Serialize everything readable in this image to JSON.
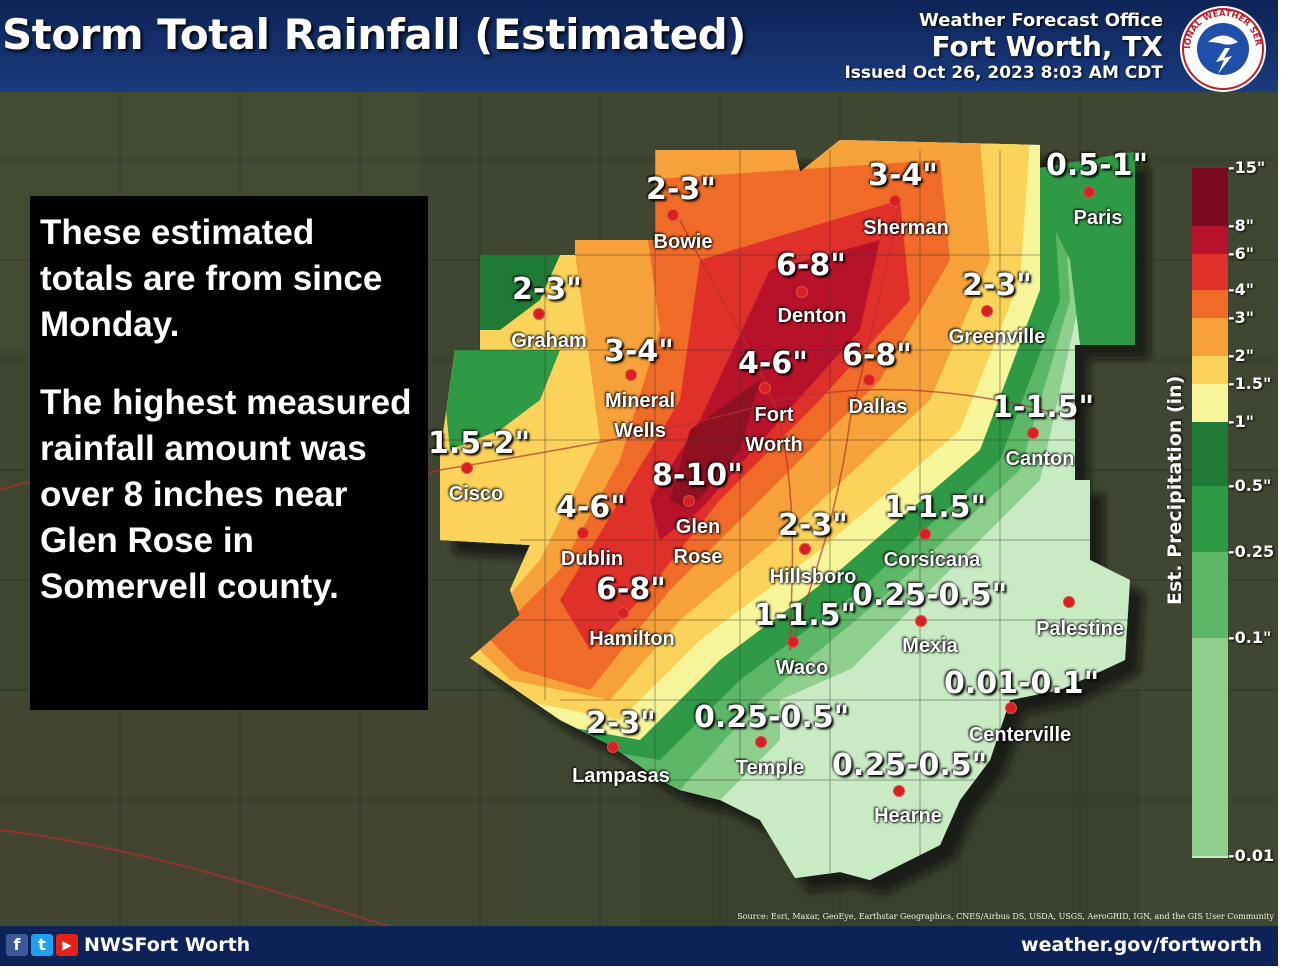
{
  "header": {
    "title": "Storm Total Rainfall (Estimated)",
    "office_line1": "Weather Forecast Office",
    "office_line2": "Fort Worth, TX",
    "issued": "Issued Oct 26, 2023 8:03 AM CDT"
  },
  "logo": {
    "text": "NATIONAL WEATHER SERVICE",
    "icon": "nws-logo"
  },
  "note": {
    "paragraph1": "These estimated\ntotals are from since\nMonday.",
    "paragraph2": "The highest measured\nrainfall amount was\nover 8 inches near\nGlen Rose in\nSomervell county."
  },
  "labels": [
    {
      "amount": "2-3\"",
      "city": "Bowie"
    },
    {
      "amount": "3-4\"",
      "city": "Sherman"
    },
    {
      "amount": "0.5-1\"",
      "city": "Paris"
    },
    {
      "amount": "2-3\"",
      "city": "Graham"
    },
    {
      "amount": "6-8\"",
      "city": "Denton"
    },
    {
      "amount": "2-3\"",
      "city": "Greenville"
    },
    {
      "amount": "3-4\"",
      "city": "Mineral Wells"
    },
    {
      "amount": "4-6\"",
      "city": "Fort Worth"
    },
    {
      "amount": "6-8\"",
      "city": "Dallas"
    },
    {
      "amount": "1-1.5\"",
      "city": "Canton"
    },
    {
      "amount": "1.5-2\"",
      "city": "Cisco"
    },
    {
      "amount": "8-10\"",
      "city": "Glen Rose"
    },
    {
      "amount": "4-6\"",
      "city": "Dublin"
    },
    {
      "amount": "2-3\"",
      "city": "Hillsboro"
    },
    {
      "amount": "1-1.5\"",
      "city": "Corsicana"
    },
    {
      "amount": "6-8\"",
      "city": "Hamilton"
    },
    {
      "amount": "0.25-0.5\"",
      "city": "Mexia"
    },
    {
      "amount": "",
      "city": "Palestine"
    },
    {
      "amount": "1-1.5\"",
      "city": "Waco"
    },
    {
      "amount": "0.01-0.1\"",
      "city": "Centerville"
    },
    {
      "amount": "2-3\"",
      "city": "Lampasas"
    },
    {
      "amount": "0.25-0.5\"",
      "city": "Temple"
    },
    {
      "amount": "0.25-0.5\"",
      "city": "Hearne"
    }
  ],
  "legend": {
    "title": "Est. Precipitation (in)",
    "ticks": [
      "15\"",
      "8\"",
      "6\"",
      "4\"",
      "3\"",
      "2\"",
      "1.5\"",
      "1\"",
      "0.5\"",
      "0.25",
      "0.1\"",
      "0.01"
    ],
    "colors": [
      "#7a0a22",
      "#b8122a",
      "#e0302a",
      "#f06a28",
      "#f7a13a",
      "#fbd25a",
      "#f7f59a",
      "#1f7a35",
      "#2f9a45",
      "#5cb866",
      "#8fd08f",
      "#c8ebc4"
    ]
  },
  "source": "Source: Esri, Maxar, GeoEye, Earthstar Geographics, CNES/Airbus DS, USDA, USGS, AeroGRID, IGN, and the GIS User Community",
  "footer": {
    "facebook_icon": "f",
    "twitter_icon": "t",
    "youtube_icon": "▶",
    "handle": "NWSFort Worth",
    "site": "weather.gov/fortworth"
  }
}
